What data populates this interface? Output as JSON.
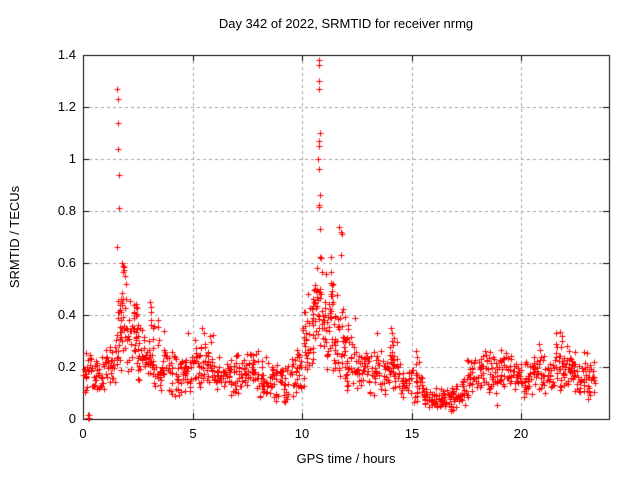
{
  "figure": {
    "background": "#ffffff",
    "text_color": "#000000"
  },
  "chart_data": {
    "type": "scatter",
    "title": "Day 342 of 2022, SRMTID for receiver nrmg",
    "xlabel": "GPS time / hours",
    "ylabel": "SRMTID / TECUs",
    "xlim": [
      0,
      24
    ],
    "ylim": [
      0,
      1.4
    ],
    "xticks": [
      0,
      5,
      10,
      15,
      20
    ],
    "xtick_labels": [
      "0",
      "5",
      "10",
      "15",
      "20"
    ],
    "yticks": [
      0,
      0.2,
      0.4,
      0.6,
      0.8,
      1,
      1.2,
      1.4
    ],
    "ytick_labels": [
      "0",
      "0.2",
      "0.4",
      "0.6",
      "0.8",
      "1",
      "1.2",
      "1.4"
    ],
    "grid": true,
    "grid_style": "dashed",
    "grid_color": "#a0a0a0",
    "axis_color": "#000000",
    "legend": null,
    "marker": {
      "shape": "plus",
      "color": "#ff0000",
      "size": 7
    },
    "x_data_end": 23.4,
    "series": [
      {
        "name": "SRMTID",
        "color": "#ff0000",
        "outliers": [
          [
            0.25,
            0.005
          ],
          [
            0.27,
            0.005
          ],
          [
            0.25,
            0.015
          ],
          [
            0.27,
            0.015
          ],
          [
            1.57,
            1.27
          ],
          [
            1.58,
            1.23
          ],
          [
            1.6,
            1.14
          ],
          [
            1.61,
            1.04
          ],
          [
            1.62,
            0.94
          ],
          [
            1.63,
            0.81
          ],
          [
            1.55,
            0.66
          ],
          [
            1.8,
            0.6
          ],
          [
            1.82,
            0.59
          ],
          [
            1.85,
            0.575
          ],
          [
            1.88,
            0.585
          ],
          [
            1.83,
            0.565
          ],
          [
            1.9,
            0.55
          ],
          [
            1.95,
            0.52
          ],
          [
            3.05,
            0.45
          ],
          [
            3.08,
            0.43
          ],
          [
            3.1,
            0.41
          ],
          [
            3.12,
            0.38
          ],
          [
            3.1,
            0.36
          ],
          [
            3.18,
            0.35
          ],
          [
            3.7,
            0.34
          ],
          [
            4.8,
            0.33
          ],
          [
            5.45,
            0.35
          ],
          [
            5.5,
            0.33
          ],
          [
            10.75,
            1.38
          ],
          [
            10.77,
            1.36
          ],
          [
            10.76,
            1.3
          ],
          [
            10.78,
            1.27
          ],
          [
            10.8,
            1.1
          ],
          [
            10.76,
            1.07
          ],
          [
            10.78,
            1.05
          ],
          [
            10.74,
            1.0
          ],
          [
            10.78,
            0.96
          ],
          [
            10.82,
            0.86
          ],
          [
            10.76,
            0.825
          ],
          [
            10.77,
            0.815
          ],
          [
            10.82,
            0.73
          ],
          [
            11.32,
            0.625
          ],
          [
            11.3,
            0.565
          ],
          [
            11.33,
            0.525
          ],
          [
            11.42,
            0.52
          ],
          [
            11.42,
            0.45
          ],
          [
            11.7,
            0.74
          ],
          [
            11.76,
            0.72
          ],
          [
            11.8,
            0.71
          ],
          [
            11.79,
            0.63
          ],
          [
            13.4,
            0.33
          ],
          [
            14.05,
            0.35
          ],
          [
            14.08,
            0.33
          ],
          [
            14.1,
            0.3
          ],
          [
            14.15,
            0.285
          ],
          [
            14.2,
            0.31
          ],
          [
            15.2,
            0.26
          ],
          [
            15.25,
            0.24
          ],
          [
            16.8,
            0.03
          ],
          [
            16.9,
            0.035
          ],
          [
            17.0,
            0.045
          ],
          [
            18.9,
            0.055
          ],
          [
            20.8,
            0.29
          ],
          [
            21.6,
            0.33
          ],
          [
            21.75,
            0.335
          ],
          [
            21.85,
            0.32
          ]
        ],
        "bands_format": [
          "hour_start",
          "hour_end",
          "y_min",
          "y_max",
          "n_points"
        ],
        "bands": [
          [
            0.0,
            0.5,
            0.1,
            0.28,
            26
          ],
          [
            0.5,
            1.0,
            0.1,
            0.27,
            26
          ],
          [
            1.0,
            1.5,
            0.12,
            0.32,
            28
          ],
          [
            1.5,
            2.0,
            0.17,
            0.55,
            40
          ],
          [
            2.0,
            2.5,
            0.15,
            0.5,
            38
          ],
          [
            2.5,
            3.0,
            0.14,
            0.38,
            30
          ],
          [
            3.0,
            3.5,
            0.12,
            0.4,
            30
          ],
          [
            3.5,
            4.0,
            0.1,
            0.3,
            28
          ],
          [
            4.0,
            4.5,
            0.08,
            0.28,
            26
          ],
          [
            4.5,
            5.0,
            0.08,
            0.29,
            26
          ],
          [
            5.0,
            5.5,
            0.1,
            0.32,
            28
          ],
          [
            5.5,
            6.0,
            0.1,
            0.34,
            28
          ],
          [
            6.0,
            6.5,
            0.09,
            0.26,
            26
          ],
          [
            6.5,
            7.0,
            0.08,
            0.26,
            26
          ],
          [
            7.0,
            7.5,
            0.08,
            0.27,
            26
          ],
          [
            7.5,
            8.0,
            0.1,
            0.28,
            28
          ],
          [
            8.0,
            8.5,
            0.07,
            0.24,
            26
          ],
          [
            8.5,
            9.0,
            0.06,
            0.22,
            26
          ],
          [
            9.0,
            9.5,
            0.05,
            0.22,
            26
          ],
          [
            9.5,
            10.0,
            0.08,
            0.33,
            30
          ],
          [
            10.0,
            10.5,
            0.12,
            0.5,
            34
          ],
          [
            10.5,
            11.0,
            0.2,
            0.65,
            44
          ],
          [
            11.0,
            11.5,
            0.15,
            0.62,
            40
          ],
          [
            11.5,
            12.0,
            0.12,
            0.5,
            36
          ],
          [
            12.0,
            12.5,
            0.1,
            0.4,
            30
          ],
          [
            12.5,
            13.0,
            0.1,
            0.3,
            28
          ],
          [
            13.0,
            13.5,
            0.08,
            0.3,
            26
          ],
          [
            13.5,
            14.0,
            0.08,
            0.28,
            26
          ],
          [
            14.0,
            14.5,
            0.1,
            0.32,
            28
          ],
          [
            14.5,
            15.0,
            0.08,
            0.22,
            26
          ],
          [
            15.0,
            15.5,
            0.05,
            0.25,
            26
          ],
          [
            15.5,
            16.0,
            0.04,
            0.14,
            28
          ],
          [
            16.0,
            16.5,
            0.03,
            0.13,
            28
          ],
          [
            16.5,
            17.0,
            0.03,
            0.14,
            22
          ],
          [
            17.0,
            17.5,
            0.04,
            0.18,
            24
          ],
          [
            17.5,
            18.0,
            0.08,
            0.26,
            26
          ],
          [
            18.0,
            18.5,
            0.1,
            0.28,
            26
          ],
          [
            18.5,
            19.0,
            0.07,
            0.27,
            26
          ],
          [
            19.0,
            19.5,
            0.1,
            0.3,
            28
          ],
          [
            19.5,
            20.0,
            0.1,
            0.26,
            26
          ],
          [
            20.0,
            20.5,
            0.08,
            0.26,
            26
          ],
          [
            20.5,
            21.0,
            0.1,
            0.29,
            26
          ],
          [
            21.0,
            21.5,
            0.08,
            0.26,
            26
          ],
          [
            21.5,
            22.0,
            0.1,
            0.32,
            30
          ],
          [
            22.0,
            22.5,
            0.1,
            0.32,
            30
          ],
          [
            22.5,
            23.0,
            0.08,
            0.27,
            26
          ],
          [
            23.0,
            23.4,
            0.05,
            0.24,
            20
          ]
        ]
      }
    ]
  }
}
